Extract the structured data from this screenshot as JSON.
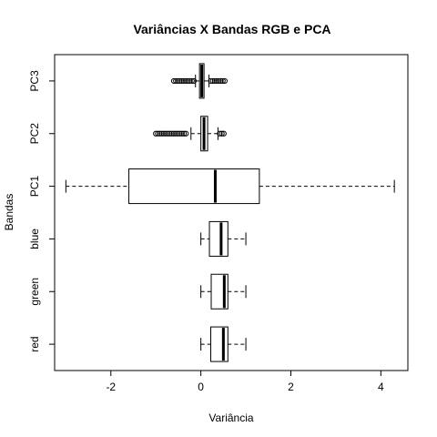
{
  "chart_data": {
    "type": "boxplot",
    "orientation": "horizontal",
    "title": "Variâncias X Bandas RGB e PCA",
    "xlabel": "Variância",
    "ylabel": "Bandas",
    "xlim": [
      -3.25,
      4.6
    ],
    "xticks": [
      -2,
      0,
      2,
      4
    ],
    "xtick_labels": [
      "-2",
      "0",
      "2",
      "4"
    ],
    "categories": [
      "red",
      "green",
      "blue",
      "PC1",
      "PC2",
      "PC3"
    ],
    "boxes": [
      {
        "name": "red",
        "whisker_low": 0.0,
        "q1": 0.22,
        "median": 0.5,
        "q3": 0.6,
        "whisker_high": 1.0,
        "outliers_low": [],
        "outliers_high": []
      },
      {
        "name": "green",
        "whisker_low": 0.0,
        "q1": 0.23,
        "median": 0.52,
        "q3": 0.6,
        "whisker_high": 1.0,
        "outliers_low": [],
        "outliers_high": []
      },
      {
        "name": "blue",
        "whisker_low": 0.0,
        "q1": 0.19,
        "median": 0.45,
        "q3": 0.6,
        "whisker_high": 1.0,
        "outliers_low": [],
        "outliers_high": []
      },
      {
        "name": "PC1",
        "whisker_low": -3.0,
        "q1": -1.6,
        "median": 0.32,
        "q3": 1.3,
        "whisker_high": 4.3,
        "outliers_low": [],
        "outliers_high": []
      },
      {
        "name": "PC2",
        "whisker_low": -0.22,
        "q1": 0.0,
        "median": 0.07,
        "q3": 0.15,
        "whisker_high": 0.38,
        "outliers_low": [
          -1.0,
          -0.3
        ],
        "outliers_high": [
          0.42,
          0.55
        ]
      },
      {
        "name": "PC3",
        "whisker_low": -0.12,
        "q1": -0.03,
        "median": 0.02,
        "q3": 0.07,
        "whisker_high": 0.18,
        "outliers_low": [
          -0.6,
          -0.15
        ],
        "outliers_high": [
          0.22,
          0.55
        ]
      }
    ],
    "grid": false,
    "legend": "none"
  }
}
